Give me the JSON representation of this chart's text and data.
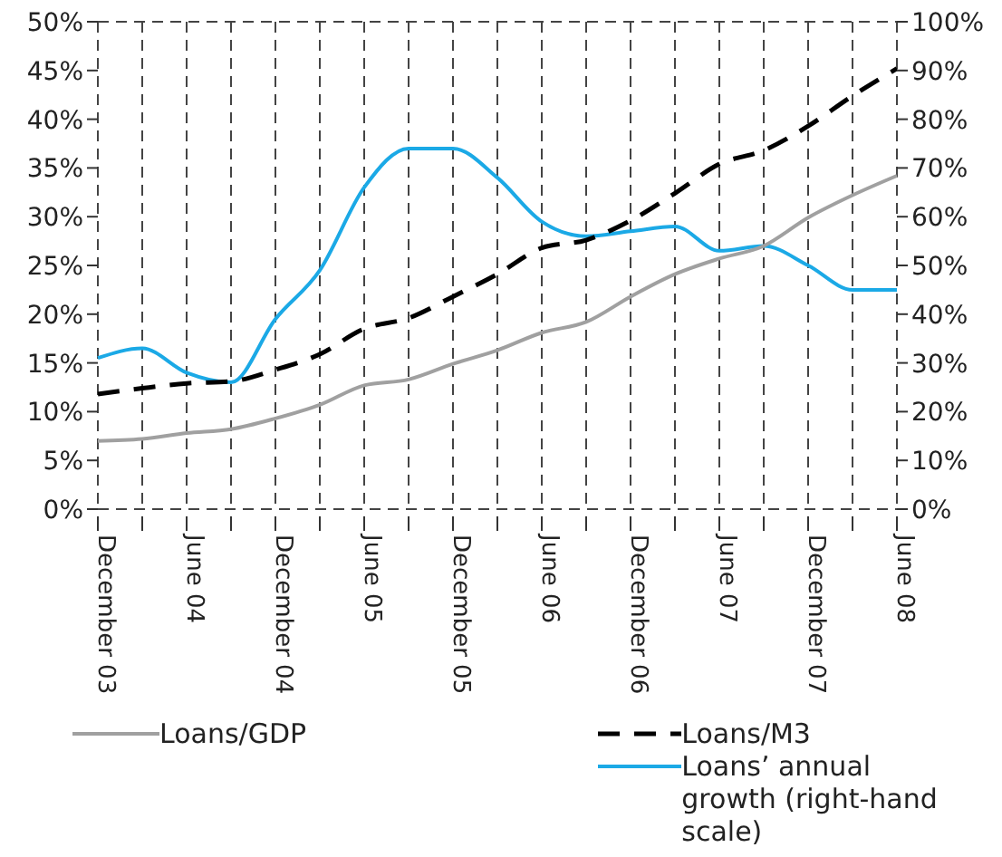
{
  "chart_data": {
    "type": "line",
    "categories": [
      "December 03",
      null,
      "June 04",
      null,
      "December 04",
      null,
      "June 05",
      null,
      "December 05",
      null,
      "June 06",
      null,
      "December 06",
      null,
      "June 07",
      null,
      "December 07",
      null,
      "June 08"
    ],
    "series": [
      {
        "name": "Loans’ annual growth (right-hand scale)",
        "color": "#1ba9e6",
        "axis": "y2",
        "line_style": "solid",
        "values": [
          31,
          33,
          28,
          26,
          39,
          49,
          66,
          74,
          74,
          68,
          59,
          56,
          57,
          58,
          53,
          54,
          50,
          45,
          45
        ]
      },
      {
        "name": "Loans/M3",
        "color": "#000000",
        "line_style": "dashed",
        "values": [
          11.8,
          12.4,
          12.9,
          13.1,
          14.3,
          15.9,
          18.5,
          19.6,
          21.8,
          24.1,
          26.8,
          27.6,
          29.6,
          32.4,
          35.4,
          36.8,
          39.3,
          42.4,
          45.2
        ]
      },
      {
        "name": "Loans/GDP",
        "color": "#a0a0a0",
        "line_style": "solid",
        "values": [
          7.0,
          7.2,
          7.8,
          8.2,
          9.3,
          10.7,
          12.7,
          13.3,
          14.9,
          16.3,
          18.1,
          19.2,
          21.8,
          24.1,
          25.7,
          27.0,
          29.9,
          32.2,
          34.2
        ]
      }
    ],
    "ylim": [
      0,
      50
    ],
    "yticks": [
      {
        "value": 0,
        "label": "0%"
      },
      {
        "value": 5,
        "label": "5%"
      },
      {
        "value": 10,
        "label": "10%"
      },
      {
        "value": 15,
        "label": "15%"
      },
      {
        "value": 20,
        "label": "20%"
      },
      {
        "value": 25,
        "label": "25%"
      },
      {
        "value": 30,
        "label": "30%"
      },
      {
        "value": 35,
        "label": "35%"
      },
      {
        "value": 40,
        "label": "40%"
      },
      {
        "value": 45,
        "label": "45%"
      },
      {
        "value": 50,
        "label": "50%"
      }
    ],
    "y2lim": [
      0,
      100
    ],
    "y2ticks": [
      {
        "value": 0,
        "label": "0%"
      },
      {
        "value": 10,
        "label": "10%"
      },
      {
        "value": 20,
        "label": "20%"
      },
      {
        "value": 30,
        "label": "30%"
      },
      {
        "value": 40,
        "label": "40%"
      },
      {
        "value": 50,
        "label": "50%"
      },
      {
        "value": 60,
        "label": "60%"
      },
      {
        "value": 70,
        "label": "70%"
      },
      {
        "value": 80,
        "label": "80%"
      },
      {
        "value": 90,
        "label": "90%"
      },
      {
        "value": 100,
        "label": "100%"
      }
    ],
    "grid": true,
    "legend": "bottom",
    "marker": "none"
  }
}
